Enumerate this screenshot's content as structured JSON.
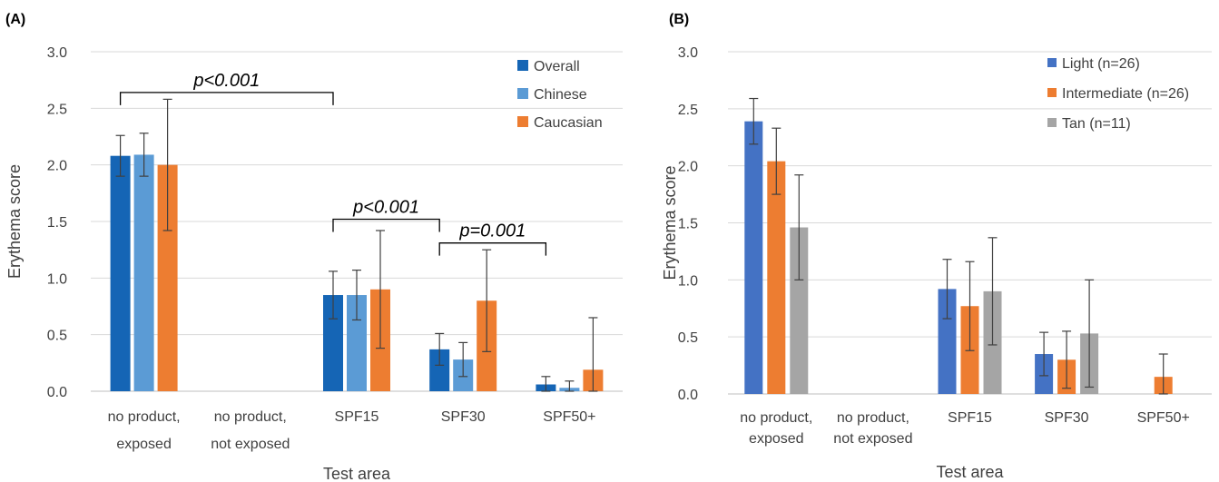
{
  "chart_data": [
    {
      "panel_label": "(A)",
      "type": "bar",
      "xlabel": "Test area",
      "ylabel": "Erythema score",
      "ylim": [
        0,
        3.0
      ],
      "yticks": [
        "0.0",
        "0.5",
        "1.0",
        "1.5",
        "2.0",
        "2.5",
        "3.0"
      ],
      "grid": true,
      "legend_position": "top-right",
      "categories": [
        [
          "no product,",
          "exposed"
        ],
        [
          "no product,",
          "not exposed"
        ],
        [
          "SPF15"
        ],
        [
          "SPF30"
        ],
        [
          "SPF50+"
        ]
      ],
      "series": [
        {
          "name": "Overall",
          "color": "#1565b5",
          "values": [
            2.08,
            0,
            0.85,
            0.37,
            0.06
          ],
          "error": [
            0.18,
            0,
            0.21,
            0.14,
            0.07
          ]
        },
        {
          "name": "Chinese",
          "color": "#5b9bd5",
          "values": [
            2.09,
            0,
            0.85,
            0.28,
            0.03
          ],
          "error": [
            0.19,
            0,
            0.22,
            0.15,
            0.06
          ]
        },
        {
          "name": "Caucasian",
          "color": "#ed7d31",
          "values": [
            2.0,
            0,
            0.9,
            0.8,
            0.19
          ],
          "error": [
            0.58,
            0,
            0.52,
            0.45,
            0.46
          ]
        }
      ],
      "annotations": [
        {
          "text": "p<0.001",
          "from": 0,
          "to": 2,
          "bracket_y": 2.64
        },
        {
          "text": "p<0.001",
          "from": 2,
          "to": 3,
          "bracket_y": 1.52
        },
        {
          "text": "p=0.001",
          "from": 3,
          "to": 4,
          "bracket_y": 1.31
        }
      ]
    },
    {
      "panel_label": "(B)",
      "type": "bar",
      "xlabel": "Test area",
      "ylabel": "Erythema score",
      "ylim": [
        0,
        3.0
      ],
      "yticks": [
        "0.0",
        "0.5",
        "1.0",
        "1.5",
        "2.0",
        "2.5",
        "3.0"
      ],
      "grid": true,
      "legend_position": "top-right",
      "categories": [
        [
          "no product,",
          "exposed"
        ],
        [
          "no product,",
          "not exposed"
        ],
        [
          "SPF15"
        ],
        [
          "SPF30"
        ],
        [
          "SPF50+"
        ]
      ],
      "series": [
        {
          "name": "Light (n=26)",
          "color": "#4472c4",
          "values": [
            2.39,
            0,
            0.92,
            0.35,
            0
          ],
          "error": [
            0.2,
            0,
            0.26,
            0.19,
            0
          ]
        },
        {
          "name": "Intermediate (n=26)",
          "color": "#ed7d31",
          "values": [
            2.04,
            0,
            0.77,
            0.3,
            0.15
          ],
          "error": [
            0.29,
            0,
            0.39,
            0.25,
            0.2
          ]
        },
        {
          "name": "Tan (n=11)",
          "color": "#a5a5a5",
          "values": [
            1.46,
            0,
            0.9,
            0.53,
            0
          ],
          "error": [
            0.46,
            0,
            0.47,
            0.47,
            0
          ]
        }
      ],
      "annotations": []
    }
  ]
}
